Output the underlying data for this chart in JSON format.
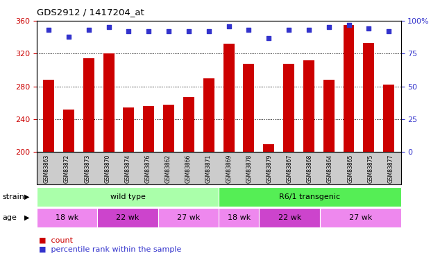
{
  "title": "GDS2912 / 1417204_at",
  "samples": [
    "GSM83863",
    "GSM83872",
    "GSM83873",
    "GSM83870",
    "GSM83874",
    "GSM83876",
    "GSM83862",
    "GSM83866",
    "GSM83871",
    "GSM83869",
    "GSM83878",
    "GSM83879",
    "GSM83867",
    "GSM83868",
    "GSM83864",
    "GSM83865",
    "GSM83875",
    "GSM83877"
  ],
  "counts": [
    288,
    252,
    314,
    320,
    254,
    256,
    258,
    267,
    290,
    332,
    308,
    210,
    308,
    312,
    288,
    355,
    333,
    282
  ],
  "percentiles": [
    93,
    88,
    93,
    95,
    92,
    92,
    92,
    92,
    92,
    96,
    93,
    87,
    93,
    93,
    95,
    97,
    94,
    92
  ],
  "bar_color": "#cc0000",
  "dot_color": "#3333cc",
  "ylim_left": [
    200,
    360
  ],
  "ylim_right": [
    0,
    100
  ],
  "yticks_left": [
    200,
    240,
    280,
    320,
    360
  ],
  "yticks_right": [
    0,
    25,
    50,
    75,
    100
  ],
  "grid_values": [
    240,
    280,
    320
  ],
  "strain_groups": [
    {
      "label": "wild type",
      "start": 0,
      "end": 8,
      "color": "#aaffaa"
    },
    {
      "label": "R6/1 transgenic",
      "start": 9,
      "end": 17,
      "color": "#55ee55"
    }
  ],
  "age_groups": [
    {
      "label": "18 wk",
      "start": 0,
      "end": 2,
      "color": "#ee88ee"
    },
    {
      "label": "22 wk",
      "start": 3,
      "end": 5,
      "color": "#cc44cc"
    },
    {
      "label": "27 wk",
      "start": 6,
      "end": 8,
      "color": "#ee88ee"
    },
    {
      "label": "18 wk",
      "start": 9,
      "end": 10,
      "color": "#ee88ee"
    },
    {
      "label": "22 wk",
      "start": 11,
      "end": 13,
      "color": "#cc44cc"
    },
    {
      "label": "27 wk",
      "start": 14,
      "end": 17,
      "color": "#ee88ee"
    }
  ],
  "strain_label": "strain",
  "age_label": "age",
  "legend_count_label": "count",
  "legend_pct_label": "percentile rank within the sample",
  "bar_color_red": "#cc0000",
  "dot_color_blue": "#3333cc",
  "xtick_bg_color": "#cccccc",
  "plot_bg_color": "#ffffff"
}
